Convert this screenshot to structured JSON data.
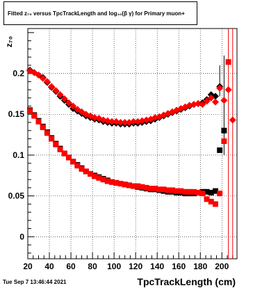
{
  "title_text": "Fitted z₇₀ versus TpcTrackLength and log₁₀(β γ) for Primary muon+",
  "timestamp": "Tue Sep 7 13:46:44 2021",
  "chart_data": {
    "type": "scatter",
    "title": "Fitted z₇₀ versus TpcTrackLength and log₁₀(β γ) for Primary muon+",
    "xlabel": "TpcTrackLength (cm)",
    "ylabel": "z₇₀",
    "xlim": [
      20,
      214
    ],
    "ylim": [
      -0.027,
      0.255
    ],
    "xticks": [
      20,
      40,
      60,
      80,
      100,
      120,
      140,
      160,
      180,
      200
    ],
    "yticks": [
      0,
      0.05,
      0.1,
      0.15,
      0.2
    ],
    "ytick_labels": [
      "0",
      "0.05",
      "0.1",
      "0.15",
      "0.2"
    ],
    "grid": true,
    "colors": {
      "black": "#000000",
      "red": "#ff0000"
    },
    "series": [
      {
        "marker": "diamond",
        "color": "#000000",
        "x": [
          22,
          26,
          30,
          34,
          38,
          42,
          46,
          50,
          54,
          58,
          62,
          66,
          70,
          74,
          78,
          82,
          86,
          90,
          94,
          98,
          102,
          106,
          110,
          114,
          118,
          122,
          126,
          130,
          134,
          138,
          142,
          146,
          150,
          154,
          158,
          162,
          166,
          170,
          174,
          178,
          182,
          186,
          190,
          194,
          198
        ],
        "y": [
          0.204,
          0.201,
          0.198,
          0.195,
          0.189,
          0.183,
          0.178,
          0.172,
          0.167,
          0.162,
          0.157,
          0.154,
          0.151,
          0.148,
          0.146,
          0.144,
          0.143,
          0.141,
          0.14,
          0.139,
          0.139,
          0.138,
          0.138,
          0.138,
          0.139,
          0.139,
          0.14,
          0.141,
          0.142,
          0.144,
          0.146,
          0.148,
          0.15,
          0.152,
          0.154,
          0.156,
          0.158,
          0.16,
          0.162,
          0.163,
          0.164,
          0.168,
          0.174,
          0.172,
          0.184
        ]
      },
      {
        "marker": "diamond",
        "color": "#ff0000",
        "x": [
          22,
          26,
          30,
          34,
          38,
          42,
          46,
          50,
          54,
          58,
          62,
          66,
          70,
          74,
          78,
          82,
          86,
          90,
          94,
          98,
          102,
          106,
          110,
          114,
          118,
          122,
          126,
          130,
          134,
          138,
          142,
          146,
          150,
          154,
          158,
          162,
          166,
          170,
          174,
          178,
          182,
          186,
          190,
          194,
          198,
          202,
          206,
          210
        ],
        "y": [
          0.203,
          0.201,
          0.198,
          0.194,
          0.19,
          0.184,
          0.179,
          0.174,
          0.169,
          0.164,
          0.16,
          0.156,
          0.153,
          0.15,
          0.148,
          0.146,
          0.145,
          0.143,
          0.142,
          0.141,
          0.141,
          0.14,
          0.14,
          0.14,
          0.141,
          0.141,
          0.142,
          0.143,
          0.144,
          0.146,
          0.147,
          0.149,
          0.151,
          0.153,
          0.155,
          0.157,
          0.159,
          0.161,
          0.162,
          0.163,
          0.162,
          0.166,
          0.17,
          0.165,
          0.182,
          0.167,
          0.18,
          0.143
        ]
      },
      {
        "marker": "square",
        "color": "#000000",
        "x": [
          22,
          26,
          30,
          34,
          38,
          42,
          46,
          50,
          54,
          58,
          62,
          66,
          70,
          74,
          78,
          82,
          86,
          90,
          94,
          98,
          102,
          106,
          110,
          114,
          118,
          122,
          126,
          130,
          134,
          138,
          142,
          146,
          150,
          154,
          158,
          162,
          166,
          170,
          174,
          178,
          182,
          186,
          190,
          194,
          198,
          202
        ],
        "y": [
          0.155,
          0.149,
          0.142,
          0.135,
          0.128,
          0.121,
          0.114,
          0.108,
          0.102,
          0.097,
          0.092,
          0.088,
          0.084,
          0.08,
          0.077,
          0.075,
          0.073,
          0.071,
          0.069,
          0.067,
          0.066,
          0.065,
          0.064,
          0.063,
          0.062,
          0.061,
          0.06,
          0.059,
          0.058,
          0.058,
          0.057,
          0.056,
          0.055,
          0.055,
          0.054,
          0.054,
          0.053,
          0.053,
          0.053,
          0.054,
          0.055,
          0.055,
          0.054,
          0.056,
          0.106,
          0.13
        ]
      },
      {
        "marker": "square",
        "color": "#ff0000",
        "x": [
          22,
          26,
          30,
          34,
          38,
          42,
          46,
          50,
          54,
          58,
          62,
          66,
          70,
          74,
          78,
          82,
          86,
          90,
          94,
          98,
          102,
          106,
          110,
          114,
          118,
          122,
          126,
          130,
          134,
          138,
          142,
          146,
          150,
          154,
          158,
          162,
          166,
          170,
          174,
          178,
          182,
          186,
          190,
          194,
          198,
          202,
          206
        ],
        "y": [
          0.154,
          0.148,
          0.141,
          0.134,
          0.127,
          0.12,
          0.113,
          0.107,
          0.102,
          0.097,
          0.092,
          0.087,
          0.083,
          0.08,
          0.077,
          0.074,
          0.072,
          0.07,
          0.068,
          0.067,
          0.066,
          0.065,
          0.064,
          0.063,
          0.062,
          0.062,
          0.061,
          0.06,
          0.059,
          0.059,
          0.058,
          0.058,
          0.057,
          0.057,
          0.056,
          0.056,
          0.055,
          0.055,
          0.055,
          0.054,
          0.053,
          0.046,
          0.043,
          0.04,
          0.053,
          0.117,
          0.214
        ]
      }
    ]
  }
}
